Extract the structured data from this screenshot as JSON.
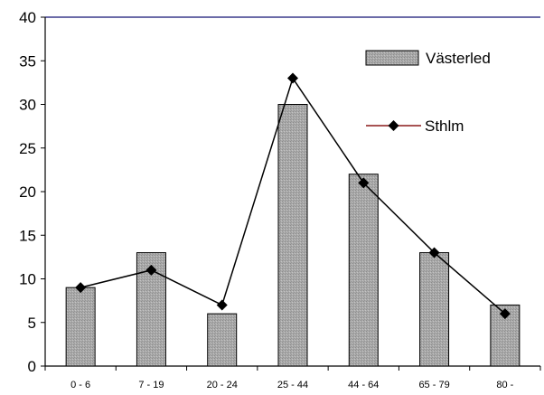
{
  "chart_data": {
    "type": "bar",
    "categories": [
      "0 - 6",
      "7 - 19",
      "20 - 24",
      "25 - 44",
      "44 - 64",
      "65 - 79",
      "80 -"
    ],
    "series": [
      {
        "name": "Västerled",
        "kind": "bar",
        "values": [
          9,
          13,
          6,
          30,
          22,
          13,
          7
        ],
        "color": "#a9a9a9"
      },
      {
        "name": "Sthlm",
        "kind": "line",
        "marker": "diamond",
        "values": [
          9,
          11,
          7,
          33,
          21,
          13,
          6
        ],
        "color": "#000000"
      }
    ],
    "ylim": [
      0,
      40
    ],
    "yticks": [
      0,
      5,
      10,
      15,
      20,
      25,
      30,
      35,
      40
    ],
    "grid": false,
    "legend_position": "right",
    "colors": {
      "bar_fill": "#a9a9a9",
      "bar_edge": "#000000",
      "line": "#000000",
      "line_legend": "#8b1a1a",
      "top_border": "#3a3a8c"
    }
  }
}
